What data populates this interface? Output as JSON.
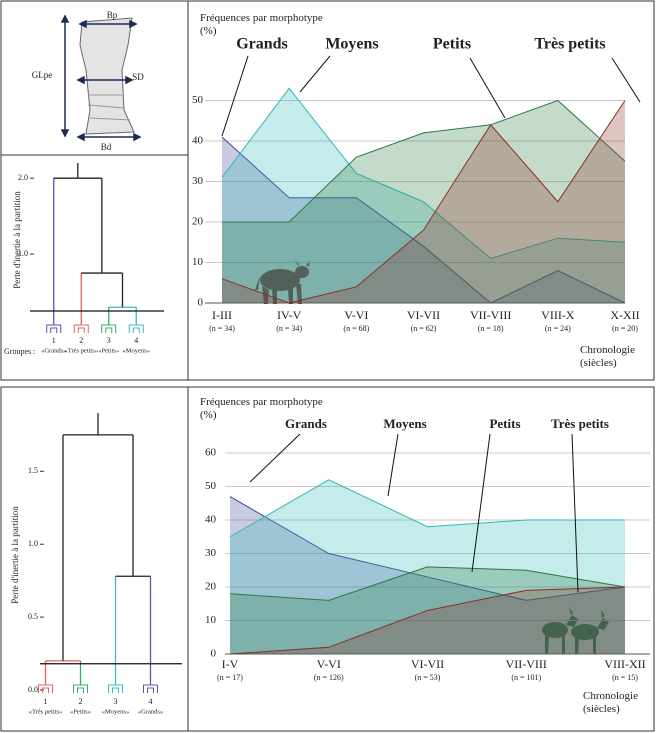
{
  "bone_diagram": {
    "labels": {
      "top": "Bp",
      "left": "GLpe",
      "middle": "SD",
      "bottom": "Bd"
    }
  },
  "chart_data": [
    {
      "type": "dendrogram",
      "ylabel": "Perte d'inertie à la partition",
      "xlabel": "Groupes :",
      "ylim": [
        0,
        2.2
      ],
      "yticks": [
        {
          "value": 1,
          "label": "1.0"
        },
        {
          "value": 2,
          "label": "2.0"
        }
      ],
      "cut": 0.25,
      "tree": {
        "height": 2.0,
        "color": "#222222",
        "children": [
          {
            "number": 1,
            "label": "«Grands»",
            "color": "#5a55b0"
          },
          {
            "height": 0.75,
            "color": "#222222",
            "children": [
              {
                "number": 2,
                "label": "«Très petits»",
                "color": "#e0665c"
              },
              {
                "height": 0.3,
                "color": "#3cbcbc",
                "children": [
                  {
                    "number": 3,
                    "label": "«Petits»",
                    "color": "#33b060"
                  },
                  {
                    "number": 4,
                    "label": "«Moyens»",
                    "color": "#3cbcbc"
                  }
                ]
              }
            ]
          }
        ]
      }
    },
    {
      "type": "area",
      "ylabel": "Fréquences par morphotype (%)",
      "xlabel": "Chronologie (siècles)",
      "categories": [
        "I-III",
        "IV-V",
        "V-VI",
        "VI-VII",
        "VII-VIII",
        "VIII-X",
        "X-XII"
      ],
      "n_labels": [
        "(n = 34)",
        "(n = 34)",
        "(n = 68)",
        "(n = 62)",
        "(n = 18)",
        "(n = 24)",
        "(n = 20)"
      ],
      "ylim": [
        0,
        60
      ],
      "yticks": [
        0,
        10,
        20,
        30,
        40,
        50
      ],
      "grid": true,
      "series": [
        {
          "name": "Grands",
          "color": "#3d4494",
          "values": [
            41,
            26,
            26,
            14,
            0,
            8,
            0
          ]
        },
        {
          "name": "Moyens",
          "color": "#2fb8b8",
          "values": [
            31,
            53,
            32,
            25,
            11,
            16,
            15
          ]
        },
        {
          "name": "Petits",
          "color": "#2b7a45",
          "values": [
            20,
            20,
            36,
            42,
            44,
            50,
            35
          ]
        },
        {
          "name": "Très petits",
          "color": "#8b2e24",
          "values": [
            6,
            0,
            4,
            18,
            44,
            25,
            50
          ]
        }
      ]
    },
    {
      "type": "dendrogram",
      "ylabel": "Perte d'inertie à la partition",
      "ylim": [
        0,
        1.9
      ],
      "yticks": [
        {
          "value": 0,
          "label": "0.0"
        },
        {
          "value": 0.5,
          "label": "0.5"
        },
        {
          "value": 1,
          "label": "1.0"
        },
        {
          "value": 1.5,
          "label": "1.5"
        }
      ],
      "cut": 0.18,
      "tree": {
        "height": 1.75,
        "color": "#222222",
        "children": [
          {
            "height": 0.2,
            "color": "#e0665c",
            "children": [
              {
                "number": 1,
                "label": "«Très petits»",
                "color": "#e0665c"
              },
              {
                "number": 2,
                "label": "«Petits»",
                "color": "#33b060"
              }
            ]
          },
          {
            "height": 0.78,
            "color": "#222222",
            "children": [
              {
                "number": 3,
                "label": "«Moyens»",
                "color": "#3cbcbc"
              },
              {
                "number": 4,
                "label": "«Grands»",
                "color": "#5a55b0"
              }
            ]
          }
        ]
      }
    },
    {
      "type": "area",
      "ylabel": "Fréquences par morphotype (%)",
      "xlabel": "Chronologie (siècles)",
      "categories": [
        "I-V",
        "V-VI",
        "VI-VII",
        "VII-VIII",
        "VIII-XII"
      ],
      "n_labels": [
        "(n = 17)",
        "(n = 126)",
        "(n = 53)",
        "(n = 101)",
        "(n = 15)"
      ],
      "ylim": [
        0,
        60
      ],
      "yticks": [
        0,
        10,
        20,
        30,
        40,
        50,
        60
      ],
      "grid": true,
      "series": [
        {
          "name": "Grands",
          "color": "#3d4494",
          "values": [
            47,
            30,
            23,
            16,
            20
          ]
        },
        {
          "name": "Moyens",
          "color": "#2fb8b8",
          "values": [
            35,
            52,
            38,
            40,
            40
          ]
        },
        {
          "name": "Petits",
          "color": "#2b7a45",
          "values": [
            18,
            16,
            26,
            25,
            20
          ]
        },
        {
          "name": "Très petits",
          "color": "#8b2e24",
          "values": [
            0,
            2,
            13,
            19,
            20
          ]
        }
      ]
    }
  ]
}
